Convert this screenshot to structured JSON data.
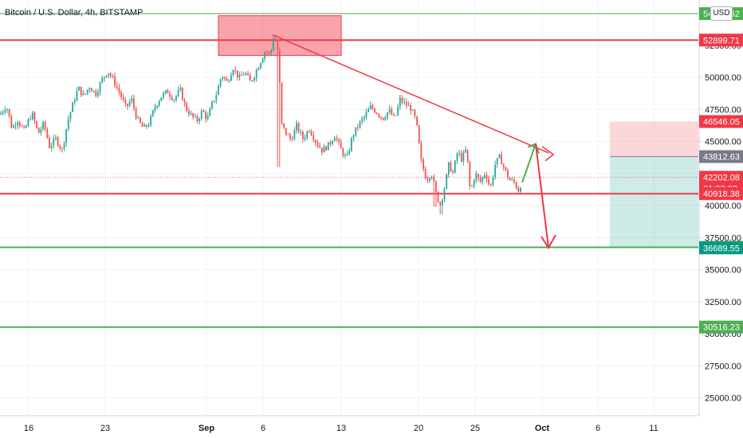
{
  "header": {
    "title": "Bitcoin / U.S. Dollar, 4h, BITSTAMP",
    "currency": "USD"
  },
  "colors": {
    "up_candle": "#26a69a",
    "down_candle": "#ef5350",
    "red_line": "#f23645",
    "green_line": "#4caf50",
    "grid": "#f0f3fa",
    "axis_border": "#d1d4dc"
  },
  "chart_data": {
    "type": "candlestick",
    "title": "Bitcoin / U.S. Dollar, 4h, BITSTAMP",
    "ylim": [
      24000,
      56500
    ],
    "x_labels": [
      "16",
      "23",
      "Sep",
      "6",
      "13",
      "20",
      "25",
      "Oct",
      "6",
      "11"
    ],
    "y_ticks": [
      25000,
      27500,
      30000,
      32500,
      35000,
      37500,
      40000,
      42500,
      45000,
      47500,
      50000,
      52500,
      55000
    ],
    "price_path": [
      [
        0,
        47100
      ],
      [
        8,
        47800
      ],
      [
        15,
        46000
      ],
      [
        22,
        46700
      ],
      [
        30,
        45800
      ],
      [
        40,
        47200
      ],
      [
        48,
        45600
      ],
      [
        55,
        46400
      ],
      [
        62,
        44600
      ],
      [
        70,
        45200
      ],
      [
        78,
        44300
      ],
      [
        85,
        46600
      ],
      [
        92,
        48000
      ],
      [
        98,
        49200
      ],
      [
        105,
        48500
      ],
      [
        112,
        49300
      ],
      [
        120,
        48700
      ],
      [
        128,
        49800
      ],
      [
        135,
        50500
      ],
      [
        142,
        49800
      ],
      [
        150,
        48800
      ],
      [
        158,
        47600
      ],
      [
        165,
        48300
      ],
      [
        172,
        46700
      ],
      [
        180,
        46000
      ],
      [
        187,
        46400
      ],
      [
        195,
        47800
      ],
      [
        202,
        48500
      ],
      [
        210,
        48900
      ],
      [
        218,
        48300
      ],
      [
        226,
        49000
      ],
      [
        233,
        47600
      ],
      [
        240,
        47000
      ],
      [
        247,
        46600
      ],
      [
        254,
        47400
      ],
      [
        260,
        46700
      ],
      [
        266,
        47900
      ],
      [
        272,
        48800
      ],
      [
        278,
        50200
      ],
      [
        285,
        49600
      ],
      [
        292,
        50800
      ],
      [
        300,
        49900
      ],
      [
        307,
        50400
      ],
      [
        314,
        49600
      ],
      [
        320,
        50300
      ],
      [
        327,
        51300
      ],
      [
        333,
        52100
      ],
      [
        339,
        51700
      ],
      [
        343,
        53200
      ],
      [
        347,
        52600
      ],
      [
        350,
        51400
      ],
      [
        352,
        46500
      ],
      [
        357,
        45800
      ],
      [
        365,
        45100
      ],
      [
        372,
        46200
      ],
      [
        380,
        45200
      ],
      [
        388,
        46000
      ],
      [
        396,
        45000
      ],
      [
        404,
        44300
      ],
      [
        412,
        44700
      ],
      [
        420,
        45500
      ],
      [
        428,
        44300
      ],
      [
        435,
        43600
      ],
      [
        442,
        45400
      ],
      [
        450,
        46300
      ],
      [
        458,
        47000
      ],
      [
        465,
        47700
      ],
      [
        472,
        47300
      ],
      [
        480,
        46800
      ],
      [
        488,
        47400
      ],
      [
        495,
        46700
      ],
      [
        502,
        48300
      ],
      [
        508,
        47900
      ],
      [
        515,
        47600
      ],
      [
        522,
        46600
      ],
      [
        528,
        43500
      ],
      [
        535,
        42000
      ],
      [
        541,
        42600
      ],
      [
        547,
        40900
      ],
      [
        552,
        40000
      ],
      [
        558,
        41500
      ],
      [
        563,
        43200
      ],
      [
        568,
        42500
      ],
      [
        574,
        44200
      ],
      [
        579,
        43600
      ],
      [
        585,
        44400
      ],
      [
        590,
        41000
      ],
      [
        596,
        42500
      ],
      [
        602,
        41800
      ],
      [
        609,
        42600
      ],
      [
        615,
        41300
      ],
      [
        621,
        43200
      ],
      [
        627,
        43800
      ],
      [
        633,
        42800
      ],
      [
        639,
        42000
      ],
      [
        645,
        41800
      ],
      [
        651,
        41100
      ],
      [
        655,
        42200
      ]
    ],
    "horizontal_lines": [
      {
        "price": 54962.62,
        "label": "54962.62",
        "color": "#4caf50",
        "width": 1
      },
      {
        "price": 52899.71,
        "label": "52899.71",
        "color": "#f23645",
        "width": 2
      },
      {
        "price": 40918.38,
        "label": "40918.38",
        "color": "#f23645",
        "width": 2
      },
      {
        "price": 36735.36,
        "label": "36735.36",
        "color": "#4caf50",
        "width": 2
      },
      {
        "price": 30516.23,
        "label": "30516.23",
        "color": "#4caf50",
        "width": 2
      }
    ],
    "axis_tags": [
      {
        "label": "54962.62",
        "price": 54962.62,
        "bg": "#4caf50",
        "size": "small",
        "partially_hidden": true
      },
      {
        "label": "52899.71",
        "price": 52899.71,
        "bg": "#f23645"
      },
      {
        "label": "46546.05",
        "price": 46546.05,
        "bg": "#f23645"
      },
      {
        "label": "43812.63",
        "price": 43812.63,
        "bg": "#787b86"
      },
      {
        "label": "42202.08",
        "sub": "01:33:03",
        "price": 42202.08,
        "bg": "#f23645"
      },
      {
        "label": "40918.38",
        "price": 40918.38,
        "bg": "#f23645"
      },
      {
        "label": "36735.36",
        "price": 36735.36,
        "bg": "#4caf50"
      },
      {
        "label": "36689.55",
        "price": 36689.55,
        "bg": "#089981"
      },
      {
        "label": "30516.23",
        "price": 30516.23,
        "bg": "#4caf50"
      }
    ],
    "current_price": 42202.08,
    "countdown": "01:33:03",
    "position": {
      "entry": 43812.63,
      "stop": 46546.05,
      "target": 36689.55
    },
    "annotations": {
      "supply_zone": {
        "top": 54800,
        "bottom": 51700
      },
      "trendline": {
        "start_price": 53300,
        "end_price": 44100
      },
      "arrow_up_target": 44800,
      "arrow_down_target": 36700
    }
  }
}
